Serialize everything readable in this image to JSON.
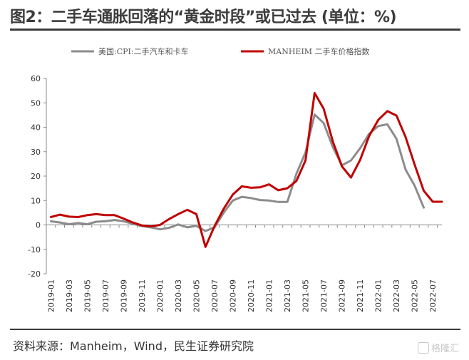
{
  "header": {
    "title": "图2：二手车通胀回落的“黄金时段”或已过去 (单位：%)"
  },
  "footer": {
    "source": "资料来源：Manheim，Wind，民生证券研究院",
    "watermark": "格隆汇"
  },
  "colors": {
    "cpi_series": "#8c8c8c",
    "manheim_series": "#c00000",
    "axis": "#888888",
    "text": "#333333"
  },
  "chart_data": {
    "type": "line",
    "title": "",
    "xlabel": "",
    "ylabel": "",
    "ylim": [
      -20,
      60
    ],
    "yticks": [
      -20,
      -10,
      0,
      10,
      20,
      30,
      40,
      50,
      60
    ],
    "xticks": [
      "2019-01",
      "2019-03",
      "2019-05",
      "2019-07",
      "2019-09",
      "2019-11",
      "2020-01",
      "2020-03",
      "2020-05",
      "2020-07",
      "2020-09",
      "2020-11",
      "2021-01",
      "2021-03",
      "2021-05",
      "2021-07",
      "2021-09",
      "2021-11",
      "2022-01",
      "2022-03",
      "2022-05",
      "2022-07"
    ],
    "x": [
      "2019-01",
      "2019-02",
      "2019-03",
      "2019-04",
      "2019-05",
      "2019-06",
      "2019-07",
      "2019-08",
      "2019-09",
      "2019-10",
      "2019-11",
      "2019-12",
      "2020-01",
      "2020-02",
      "2020-03",
      "2020-04",
      "2020-05",
      "2020-06",
      "2020-07",
      "2020-08",
      "2020-09",
      "2020-10",
      "2020-11",
      "2020-12",
      "2021-01",
      "2021-02",
      "2021-03",
      "2021-04",
      "2021-05",
      "2021-06",
      "2021-07",
      "2021-08",
      "2021-09",
      "2021-10",
      "2021-11",
      "2021-12",
      "2022-01",
      "2022-02",
      "2022-03",
      "2022-04",
      "2022-05",
      "2022-06",
      "2022-07",
      "2022-08"
    ],
    "legend_position": "top",
    "grid": false,
    "series": [
      {
        "name": "美国:CPI:二手汽车和卡车",
        "values": [
          1.5,
          1.0,
          0.3,
          0.8,
          0.3,
          1.3,
          1.5,
          2.0,
          1.5,
          0.5,
          -0.5,
          -1.0,
          -1.8,
          -1.2,
          0.2,
          -1.0,
          -0.4,
          -2.5,
          -1.0,
          5.0,
          10.0,
          11.5,
          11.0,
          10.2,
          10.0,
          9.4,
          9.4,
          21.0,
          29.7,
          45.2,
          41.7,
          31.9,
          24.4,
          26.4,
          31.4,
          37.3,
          40.5,
          41.2,
          35.3,
          22.7,
          16.1,
          7.1,
          null,
          null
        ]
      },
      {
        "name": "MANHEIM 二手车价格指数",
        "values": [
          3.2,
          4.2,
          3.4,
          3.2,
          4.0,
          4.4,
          4.0,
          4.0,
          2.6,
          1.0,
          -0.2,
          -0.6,
          0.0,
          2.4,
          4.4,
          6.2,
          4.4,
          -9.0,
          -0.5,
          6.6,
          12.4,
          15.8,
          15.2,
          15.4,
          16.6,
          14.2,
          15.0,
          18.0,
          26.4,
          54.0,
          47.6,
          34.2,
          24.0,
          19.4,
          26.6,
          36.4,
          43.0,
          46.6,
          44.8,
          36.0,
          24.7,
          14.0,
          9.5,
          9.5
        ]
      }
    ]
  }
}
